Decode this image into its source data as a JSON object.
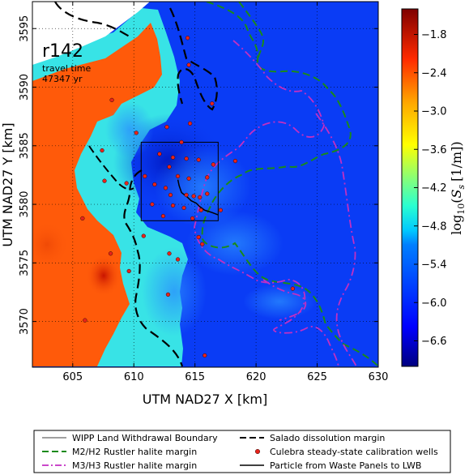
{
  "map": {
    "run_label": "r142",
    "travel_time_label": "travel time",
    "travel_time_value": "47347 yr",
    "x_axis_label": "UTM NAD27 X [km]",
    "y_axis_label": "UTM NAD27 Y [km]",
    "x_ticks": [
      {
        "value": 605,
        "label": "605"
      },
      {
        "value": 610,
        "label": "610"
      },
      {
        "value": 615,
        "label": "615"
      },
      {
        "value": 620,
        "label": "620"
      },
      {
        "value": 625,
        "label": "625"
      },
      {
        "value": 630,
        "label": "630"
      }
    ],
    "y_ticks": [
      {
        "value": 3595,
        "label": "3595"
      },
      {
        "value": 3590,
        "label": "3590"
      },
      {
        "value": 3585,
        "label": "3585"
      },
      {
        "value": 3580,
        "label": "3580"
      },
      {
        "value": 3575,
        "label": "3575"
      },
      {
        "value": 3570,
        "label": "3570"
      }
    ],
    "x_range": [
      601.7,
      630
    ],
    "y_range": [
      3566.1,
      3597.3
    ],
    "grid": "dotted",
    "wipp_boundary_km": {
      "x": [
        610.6,
        616.9
      ],
      "y": [
        3578.6,
        3585.3
      ]
    },
    "calibration_wells_km": [
      [
        614.4,
        3594.2
      ],
      [
        614.5,
        3591.9
      ],
      [
        608.2,
        3588.9
      ],
      [
        616.4,
        3588.6
      ],
      [
        610.2,
        3586.1
      ],
      [
        612.7,
        3586.6
      ],
      [
        614.6,
        3586.9
      ],
      [
        613.9,
        3585.3
      ],
      [
        607.4,
        3584.6
      ],
      [
        612.1,
        3584.3
      ],
      [
        613.2,
        3584.0
      ],
      [
        614.3,
        3583.9
      ],
      [
        615.3,
        3583.8
      ],
      [
        618.3,
        3583.7
      ],
      [
        616.5,
        3583.4
      ],
      [
        612.9,
        3583.2
      ],
      [
        610.9,
        3582.4
      ],
      [
        613.6,
        3582.4
      ],
      [
        614.5,
        3582.2
      ],
      [
        616.0,
        3582.3
      ],
      [
        607.6,
        3582.0
      ],
      [
        609.4,
        3581.8
      ],
      [
        611.7,
        3581.7
      ],
      [
        612.6,
        3581.4
      ],
      [
        613.0,
        3580.8
      ],
      [
        614.3,
        3580.8
      ],
      [
        614.9,
        3580.7
      ],
      [
        615.4,
        3580.6
      ],
      [
        616.0,
        3580.9
      ],
      [
        611.5,
        3580.0
      ],
      [
        613.2,
        3579.9
      ],
      [
        614.1,
        3579.7
      ],
      [
        615.5,
        3579.5
      ],
      [
        617.1,
        3579.5
      ],
      [
        612.4,
        3579.0
      ],
      [
        614.8,
        3578.8
      ],
      [
        605.8,
        3578.8
      ],
      [
        610.8,
        3577.3
      ],
      [
        615.3,
        3577.2
      ],
      [
        615.6,
        3576.6
      ],
      [
        608.1,
        3575.8
      ],
      [
        612.9,
        3575.8
      ],
      [
        613.6,
        3575.3
      ],
      [
        609.6,
        3574.3
      ],
      [
        612.8,
        3572.3
      ],
      [
        623.0,
        3572.8
      ],
      [
        606.0,
        3570.1
      ],
      [
        615.8,
        3567.1
      ]
    ],
    "particle_path_km": [
      [
        613.6,
        3582.1
      ],
      [
        613.7,
        3581.6
      ],
      [
        613.9,
        3581.0
      ],
      [
        614.4,
        3580.6
      ],
      [
        614.7,
        3580.3
      ],
      [
        615.1,
        3580.1
      ],
      [
        615.4,
        3579.8
      ],
      [
        615.8,
        3579.5
      ],
      [
        616.4,
        3579.3
      ],
      [
        616.9,
        3579.1
      ]
    ]
  },
  "colorbar": {
    "label": "log10(Ss [1/m])",
    "label_math_base": "log",
    "label_math_sub": "10",
    "label_math_arg_open": "(",
    "label_math_S": "S",
    "label_math_S_sub": "s",
    "label_math_units": "[1/m]",
    "label_math_close": ")",
    "range": [
      -7.0,
      -1.4
    ],
    "ticks": [
      {
        "value": -1.8,
        "label": "−1.8"
      },
      {
        "value": -2.4,
        "label": "−2.4"
      },
      {
        "value": -3.0,
        "label": "−3.0"
      },
      {
        "value": -3.6,
        "label": "−3.6"
      },
      {
        "value": -4.2,
        "label": "−4.2"
      },
      {
        "value": -4.8,
        "label": "−4.8"
      },
      {
        "value": -5.4,
        "label": "−5.4"
      },
      {
        "value": -6.0,
        "label": "−6.0"
      },
      {
        "value": -6.6,
        "label": "−6.6"
      }
    ],
    "colormap": [
      "#00007f",
      "#0000ff",
      "#007fff",
      "#00ffff",
      "#7fff7f",
      "#ffff00",
      "#ff7f00",
      "#ff0000",
      "#7f0000"
    ]
  },
  "legend": {
    "items": [
      {
        "id": "wipp",
        "label": "WIPP Land Withdrawal Boundary",
        "color": "#000000",
        "style": "thin-solid"
      },
      {
        "id": "salado",
        "label": "Salado dissolution margin",
        "color": "#000000",
        "style": "dashed"
      },
      {
        "id": "m2h2",
        "label": "M2/H2 Rustler halite margin",
        "color": "#1a8a1a",
        "style": "dashed"
      },
      {
        "id": "wells",
        "label": "Culebra steady-state calibration wells",
        "color": "#e8231a",
        "style": "dot"
      },
      {
        "id": "m3h3",
        "label": "M3/H3 Rustler halite margin",
        "color": "#c22fc2",
        "style": "dashdot"
      },
      {
        "id": "particle",
        "label": "Particle from Waste Panels to LWB",
        "color": "#000000",
        "style": "solid"
      }
    ]
  },
  "colors": {
    "background_field": "#0a3cf5",
    "cyan_zone": "#38e3e6",
    "orange_zone": "#ff5a0a",
    "white_zone": "#ffffff"
  }
}
